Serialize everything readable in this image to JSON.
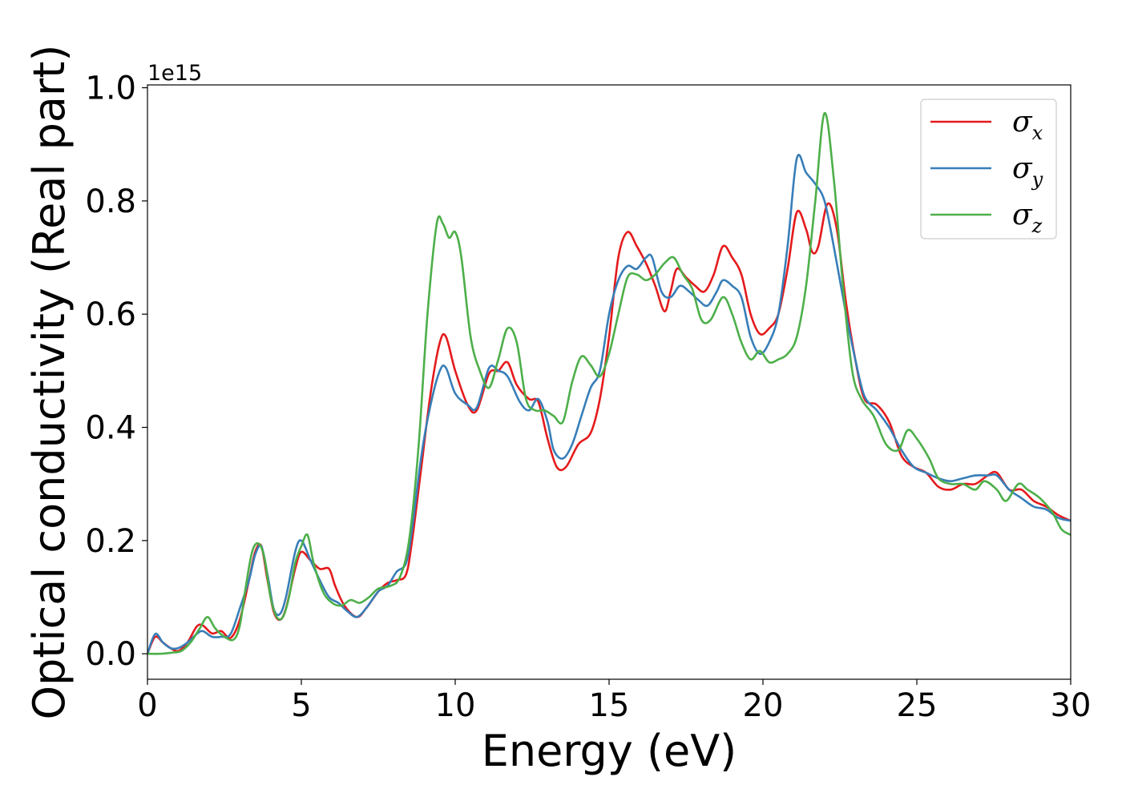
{
  "chart_data": {
    "type": "line",
    "xlabel": "Energy (eV)",
    "ylabel": "Optical conductivity (Real part)",
    "y_offset_label": "1e15",
    "xlim": [
      0,
      30
    ],
    "ylim": [
      -0.045,
      1.005
    ],
    "x_ticks": [
      0,
      5,
      10,
      15,
      20,
      25,
      30
    ],
    "x_tick_labels": [
      "0",
      "5",
      "10",
      "15",
      "20",
      "25",
      "30"
    ],
    "y_ticks": [
      0.0,
      0.2,
      0.4,
      0.6,
      0.8,
      1.0
    ],
    "y_tick_labels": [
      "0.0",
      "0.2",
      "0.4",
      "0.6",
      "0.8",
      "1.0"
    ],
    "grid": false,
    "legend_position": "top-right",
    "series": [
      {
        "name": "σ",
        "subscript": "x",
        "color": "#e41a1c",
        "points": [
          [
            0,
            0
          ],
          [
            0.25,
            0.03
          ],
          [
            0.5,
            0.02
          ],
          [
            0.75,
            0.01
          ],
          [
            1,
            0.005
          ],
          [
            1.3,
            0.02
          ],
          [
            1.6,
            0.048
          ],
          [
            1.8,
            0.05
          ],
          [
            2.1,
            0.036
          ],
          [
            2.4,
            0.04
          ],
          [
            2.7,
            0.028
          ],
          [
            3.0,
            0.06
          ],
          [
            3.3,
            0.13
          ],
          [
            3.5,
            0.18
          ],
          [
            3.7,
            0.19
          ],
          [
            3.9,
            0.13
          ],
          [
            4.1,
            0.075
          ],
          [
            4.3,
            0.06
          ],
          [
            4.5,
            0.08
          ],
          [
            4.8,
            0.15
          ],
          [
            5.0,
            0.18
          ],
          [
            5.3,
            0.165
          ],
          [
            5.6,
            0.15
          ],
          [
            5.9,
            0.15
          ],
          [
            6.1,
            0.12
          ],
          [
            6.4,
            0.085
          ],
          [
            6.8,
            0.065
          ],
          [
            7.1,
            0.08
          ],
          [
            7.5,
            0.11
          ],
          [
            7.8,
            0.125
          ],
          [
            8.1,
            0.13
          ],
          [
            8.4,
            0.14
          ],
          [
            8.6,
            0.2
          ],
          [
            8.9,
            0.33
          ],
          [
            9.2,
            0.46
          ],
          [
            9.5,
            0.55
          ],
          [
            9.7,
            0.56
          ],
          [
            10.0,
            0.5
          ],
          [
            10.4,
            0.44
          ],
          [
            10.7,
            0.43
          ],
          [
            11.1,
            0.495
          ],
          [
            11.4,
            0.5
          ],
          [
            11.7,
            0.515
          ],
          [
            12.0,
            0.475
          ],
          [
            12.4,
            0.45
          ],
          [
            12.7,
            0.445
          ],
          [
            13.0,
            0.38
          ],
          [
            13.3,
            0.33
          ],
          [
            13.6,
            0.33
          ],
          [
            14.0,
            0.37
          ],
          [
            14.4,
            0.39
          ],
          [
            14.7,
            0.45
          ],
          [
            15.0,
            0.56
          ],
          [
            15.3,
            0.7
          ],
          [
            15.6,
            0.745
          ],
          [
            15.9,
            0.72
          ],
          [
            16.2,
            0.69
          ],
          [
            16.5,
            0.65
          ],
          [
            16.8,
            0.605
          ],
          [
            17.0,
            0.64
          ],
          [
            17.2,
            0.68
          ],
          [
            17.5,
            0.665
          ],
          [
            17.8,
            0.65
          ],
          [
            18.1,
            0.64
          ],
          [
            18.4,
            0.67
          ],
          [
            18.7,
            0.72
          ],
          [
            19.0,
            0.7
          ],
          [
            19.3,
            0.67
          ],
          [
            19.6,
            0.6
          ],
          [
            19.9,
            0.565
          ],
          [
            20.2,
            0.575
          ],
          [
            20.5,
            0.6
          ],
          [
            20.8,
            0.68
          ],
          [
            21.1,
            0.78
          ],
          [
            21.4,
            0.75
          ],
          [
            21.6,
            0.71
          ],
          [
            21.8,
            0.72
          ],
          [
            22.1,
            0.795
          ],
          [
            22.4,
            0.75
          ],
          [
            22.7,
            0.62
          ],
          [
            23.0,
            0.52
          ],
          [
            23.3,
            0.45
          ],
          [
            23.7,
            0.44
          ],
          [
            24.1,
            0.41
          ],
          [
            24.5,
            0.35
          ],
          [
            24.9,
            0.33
          ],
          [
            25.3,
            0.32
          ],
          [
            25.7,
            0.295
          ],
          [
            26.1,
            0.29
          ],
          [
            26.5,
            0.3
          ],
          [
            26.9,
            0.3
          ],
          [
            27.3,
            0.315
          ],
          [
            27.6,
            0.32
          ],
          [
            28.0,
            0.29
          ],
          [
            28.4,
            0.29
          ],
          [
            28.8,
            0.27
          ],
          [
            29.2,
            0.26
          ],
          [
            29.6,
            0.245
          ],
          [
            30.0,
            0.235
          ]
        ]
      },
      {
        "name": "σ",
        "subscript": "y",
        "color": "#377eb8",
        "points": [
          [
            0,
            0
          ],
          [
            0.25,
            0.035
          ],
          [
            0.5,
            0.02
          ],
          [
            0.75,
            0.01
          ],
          [
            1,
            0.01
          ],
          [
            1.3,
            0.02
          ],
          [
            1.6,
            0.035
          ],
          [
            1.8,
            0.04
          ],
          [
            2.1,
            0.03
          ],
          [
            2.4,
            0.03
          ],
          [
            2.7,
            0.035
          ],
          [
            3.0,
            0.08
          ],
          [
            3.3,
            0.13
          ],
          [
            3.5,
            0.175
          ],
          [
            3.7,
            0.19
          ],
          [
            3.9,
            0.14
          ],
          [
            4.1,
            0.08
          ],
          [
            4.3,
            0.07
          ],
          [
            4.5,
            0.1
          ],
          [
            4.8,
            0.18
          ],
          [
            5.0,
            0.2
          ],
          [
            5.3,
            0.165
          ],
          [
            5.6,
            0.13
          ],
          [
            5.9,
            0.1
          ],
          [
            6.2,
            0.09
          ],
          [
            6.5,
            0.075
          ],
          [
            6.8,
            0.065
          ],
          [
            7.1,
            0.08
          ],
          [
            7.5,
            0.11
          ],
          [
            7.8,
            0.12
          ],
          [
            8.1,
            0.145
          ],
          [
            8.4,
            0.16
          ],
          [
            8.6,
            0.22
          ],
          [
            8.9,
            0.35
          ],
          [
            9.2,
            0.44
          ],
          [
            9.5,
            0.5
          ],
          [
            9.7,
            0.505
          ],
          [
            10.0,
            0.46
          ],
          [
            10.4,
            0.44
          ],
          [
            10.7,
            0.435
          ],
          [
            11.1,
            0.505
          ],
          [
            11.4,
            0.5
          ],
          [
            11.7,
            0.49
          ],
          [
            12.1,
            0.445
          ],
          [
            12.4,
            0.43
          ],
          [
            12.7,
            0.45
          ],
          [
            13.0,
            0.41
          ],
          [
            13.2,
            0.36
          ],
          [
            13.5,
            0.345
          ],
          [
            13.8,
            0.37
          ],
          [
            14.1,
            0.42
          ],
          [
            14.4,
            0.47
          ],
          [
            14.7,
            0.5
          ],
          [
            15.0,
            0.6
          ],
          [
            15.3,
            0.66
          ],
          [
            15.6,
            0.685
          ],
          [
            15.9,
            0.68
          ],
          [
            16.2,
            0.7
          ],
          [
            16.4,
            0.7
          ],
          [
            16.7,
            0.64
          ],
          [
            17.0,
            0.63
          ],
          [
            17.3,
            0.65
          ],
          [
            17.6,
            0.64
          ],
          [
            17.9,
            0.625
          ],
          [
            18.2,
            0.615
          ],
          [
            18.5,
            0.64
          ],
          [
            18.7,
            0.66
          ],
          [
            19.0,
            0.65
          ],
          [
            19.3,
            0.63
          ],
          [
            19.6,
            0.56
          ],
          [
            19.9,
            0.53
          ],
          [
            20.2,
            0.55
          ],
          [
            20.5,
            0.6
          ],
          [
            20.8,
            0.72
          ],
          [
            21.1,
            0.875
          ],
          [
            21.4,
            0.85
          ],
          [
            21.7,
            0.83
          ],
          [
            22.0,
            0.8
          ],
          [
            22.3,
            0.72
          ],
          [
            22.7,
            0.6
          ],
          [
            23.0,
            0.52
          ],
          [
            23.3,
            0.455
          ],
          [
            23.7,
            0.43
          ],
          [
            24.1,
            0.4
          ],
          [
            24.5,
            0.36
          ],
          [
            24.9,
            0.33
          ],
          [
            25.3,
            0.32
          ],
          [
            25.7,
            0.31
          ],
          [
            26.1,
            0.305
          ],
          [
            26.5,
            0.31
          ],
          [
            26.9,
            0.315
          ],
          [
            27.3,
            0.315
          ],
          [
            27.6,
            0.315
          ],
          [
            28.0,
            0.29
          ],
          [
            28.4,
            0.275
          ],
          [
            28.8,
            0.26
          ],
          [
            29.2,
            0.255
          ],
          [
            29.6,
            0.24
          ],
          [
            30.0,
            0.235
          ]
        ]
      },
      {
        "name": "σ",
        "subscript": "z",
        "color": "#4daf4a",
        "points": [
          [
            0,
            0
          ],
          [
            0.4,
            0
          ],
          [
            0.8,
            0.002
          ],
          [
            1.1,
            0.005
          ],
          [
            1.4,
            0.02
          ],
          [
            1.7,
            0.045
          ],
          [
            1.95,
            0.065
          ],
          [
            2.2,
            0.045
          ],
          [
            2.5,
            0.03
          ],
          [
            2.8,
            0.025
          ],
          [
            3.0,
            0.05
          ],
          [
            3.2,
            0.12
          ],
          [
            3.4,
            0.18
          ],
          [
            3.6,
            0.195
          ],
          [
            3.8,
            0.17
          ],
          [
            4.0,
            0.1
          ],
          [
            4.2,
            0.065
          ],
          [
            4.4,
            0.065
          ],
          [
            4.6,
            0.1
          ],
          [
            4.8,
            0.16
          ],
          [
            5.0,
            0.19
          ],
          [
            5.2,
            0.21
          ],
          [
            5.4,
            0.16
          ],
          [
            5.7,
            0.11
          ],
          [
            6.0,
            0.09
          ],
          [
            6.3,
            0.085
          ],
          [
            6.6,
            0.095
          ],
          [
            6.9,
            0.09
          ],
          [
            7.2,
            0.1
          ],
          [
            7.5,
            0.115
          ],
          [
            7.9,
            0.12
          ],
          [
            8.2,
            0.135
          ],
          [
            8.5,
            0.2
          ],
          [
            8.8,
            0.36
          ],
          [
            9.1,
            0.6
          ],
          [
            9.4,
            0.76
          ],
          [
            9.6,
            0.76
          ],
          [
            9.8,
            0.735
          ],
          [
            10.0,
            0.745
          ],
          [
            10.2,
            0.7
          ],
          [
            10.5,
            0.56
          ],
          [
            10.8,
            0.5
          ],
          [
            11.1,
            0.47
          ],
          [
            11.4,
            0.52
          ],
          [
            11.7,
            0.575
          ],
          [
            12.0,
            0.55
          ],
          [
            12.3,
            0.45
          ],
          [
            12.6,
            0.43
          ],
          [
            12.9,
            0.43
          ],
          [
            13.2,
            0.42
          ],
          [
            13.5,
            0.41
          ],
          [
            13.8,
            0.48
          ],
          [
            14.1,
            0.525
          ],
          [
            14.4,
            0.51
          ],
          [
            14.7,
            0.49
          ],
          [
            15.0,
            0.53
          ],
          [
            15.3,
            0.6
          ],
          [
            15.6,
            0.665
          ],
          [
            15.9,
            0.67
          ],
          [
            16.2,
            0.66
          ],
          [
            16.5,
            0.67
          ],
          [
            16.8,
            0.69
          ],
          [
            17.1,
            0.7
          ],
          [
            17.4,
            0.67
          ],
          [
            17.7,
            0.645
          ],
          [
            18.0,
            0.59
          ],
          [
            18.3,
            0.59
          ],
          [
            18.7,
            0.63
          ],
          [
            19.0,
            0.6
          ],
          [
            19.3,
            0.55
          ],
          [
            19.6,
            0.52
          ],
          [
            19.9,
            0.535
          ],
          [
            20.2,
            0.515
          ],
          [
            20.5,
            0.52
          ],
          [
            20.8,
            0.53
          ],
          [
            21.1,
            0.56
          ],
          [
            21.4,
            0.65
          ],
          [
            21.7,
            0.8
          ],
          [
            22.0,
            0.955
          ],
          [
            22.3,
            0.84
          ],
          [
            22.6,
            0.65
          ],
          [
            22.9,
            0.5
          ],
          [
            23.2,
            0.45
          ],
          [
            23.6,
            0.42
          ],
          [
            24.0,
            0.37
          ],
          [
            24.4,
            0.36
          ],
          [
            24.7,
            0.395
          ],
          [
            25.0,
            0.38
          ],
          [
            25.4,
            0.345
          ],
          [
            25.7,
            0.31
          ],
          [
            26.1,
            0.3
          ],
          [
            26.5,
            0.3
          ],
          [
            26.9,
            0.29
          ],
          [
            27.2,
            0.305
          ],
          [
            27.6,
            0.29
          ],
          [
            27.9,
            0.27
          ],
          [
            28.3,
            0.3
          ],
          [
            28.6,
            0.29
          ],
          [
            29.0,
            0.275
          ],
          [
            29.4,
            0.25
          ],
          [
            29.7,
            0.22
          ],
          [
            30.0,
            0.21
          ]
        ]
      }
    ]
  }
}
